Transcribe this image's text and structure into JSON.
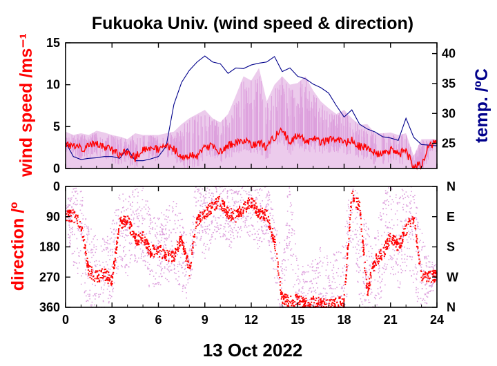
{
  "colors": {
    "speed_mean": "#ff0000",
    "speed_range": "#dda0dd",
    "temperature": "#00008b",
    "direction_mean": "#ff0000",
    "direction_raw": "#dda0dd",
    "axes": "#000000"
  },
  "chart_data": [
    {
      "panel": "top",
      "type": "line",
      "title": "Fukuoka Univ. (wind speed & direction)",
      "xlabel": "",
      "ylabel": "wind speed /ms⁻¹",
      "ylabel_right": "temp. /ºC",
      "xlim": [
        0,
        24
      ],
      "ylim": [
        0,
        15
      ],
      "ylim_right": [
        20.8,
        41.8
      ],
      "x_ticks": [
        0,
        3,
        6,
        9,
        12,
        15,
        18,
        21,
        24
      ],
      "y_ticks": [
        0,
        5,
        10,
        15
      ],
      "y_ticks_right": [
        25,
        30,
        35,
        40
      ],
      "grid": false,
      "series": [
        {
          "name": "",
          "kind": "speed-range",
          "x": [
            0,
            0.5,
            1,
            1.5,
            2,
            2.5,
            3,
            3.5,
            4,
            4.5,
            5,
            5.5,
            6,
            6.5,
            7,
            7.5,
            8,
            8.5,
            9,
            9.5,
            10,
            10.5,
            11,
            11.5,
            12,
            12.5,
            13,
            13.5,
            14,
            14.5,
            15,
            15.5,
            16,
            16.5,
            17,
            17.5,
            18,
            18.5,
            19,
            19.5,
            20,
            20.5,
            21,
            21.5,
            22,
            22.5,
            23,
            23.5,
            24
          ],
          "lower": [
            0,
            0,
            0,
            0,
            0,
            0,
            0,
            0,
            0,
            0,
            0,
            0,
            0,
            0,
            0,
            0,
            0,
            0,
            0,
            0,
            0,
            0,
            0,
            0,
            0,
            0,
            0,
            0,
            0,
            0,
            0,
            0,
            0,
            0,
            0,
            0,
            0,
            0,
            0,
            0,
            0,
            0,
            0,
            0,
            0,
            0,
            0,
            0,
            0
          ],
          "upper": [
            4.4,
            4,
            4.2,
            4,
            4.5,
            4.3,
            4,
            3.8,
            3.5,
            4.2,
            4,
            4,
            4,
            4.2,
            4.4,
            5.3,
            6,
            6.5,
            7,
            6,
            5.5,
            6.5,
            8.7,
            11,
            10.5,
            12,
            8,
            10,
            11,
            10,
            10.2,
            11,
            9.3,
            8,
            7.2,
            6.5,
            7,
            6,
            5.2,
            5.3,
            4.2,
            4.2,
            4.3,
            4,
            4.2,
            1.5,
            3.5,
            3.5,
            3.5
          ]
        },
        {
          "name": "",
          "kind": "speed-mean",
          "x": [
            0,
            0.5,
            1,
            1.5,
            2,
            2.5,
            3,
            3.5,
            4,
            4.5,
            5,
            5.5,
            6,
            6.5,
            7,
            7.5,
            8,
            8.5,
            9,
            9.5,
            10,
            10.5,
            11,
            11.5,
            12,
            12.5,
            13,
            13.5,
            14,
            14.5,
            15,
            15.5,
            16,
            16.5,
            17,
            17.5,
            18,
            18.5,
            19,
            19.5,
            20,
            20.5,
            21,
            21.5,
            22,
            22.5,
            23,
            23.5,
            24
          ],
          "values": [
            3,
            2.6,
            2.4,
            2.6,
            3,
            2.6,
            2.2,
            1.6,
            2,
            1.2,
            2.4,
            2.5,
            2.2,
            2.6,
            2.4,
            1.4,
            1.5,
            1.5,
            2.4,
            2.8,
            2,
            2.7,
            3,
            3.5,
            2.9,
            3,
            2.5,
            3.8,
            4.7,
            3,
            4,
            3.2,
            3.5,
            3.2,
            3.3,
            3.5,
            3,
            3.3,
            2.6,
            2.6,
            1.8,
            1.8,
            2.2,
            1.8,
            2,
            0.3,
            0.4,
            2.8,
            3.1
          ]
        },
        {
          "name": "",
          "kind": "temperature",
          "axis": "right",
          "x": [
            0,
            0.5,
            1,
            1.5,
            2,
            2.5,
            3,
            3.5,
            4,
            4.5,
            5,
            5.5,
            6,
            6.5,
            7,
            7.5,
            8,
            8.5,
            9,
            9.5,
            10,
            10.5,
            11,
            11.5,
            12,
            12.5,
            13,
            13.5,
            14,
            14.5,
            15,
            15.5,
            16,
            16.5,
            17,
            17.5,
            18,
            18.5,
            19,
            19.5,
            20,
            20.5,
            21,
            21.5,
            22,
            22.5,
            23,
            23.5,
            24
          ],
          "values": [
            25.2,
            22.8,
            22.3,
            22.5,
            22.6,
            22.8,
            22.8,
            22.5,
            24.1,
            22.1,
            22.1,
            22.4,
            22.8,
            24.5,
            31.5,
            35.2,
            37.2,
            38.6,
            39.6,
            38.6,
            38.3,
            36.7,
            37.6,
            37.5,
            38.1,
            38.4,
            38.6,
            39.5,
            37,
            37.6,
            36.2,
            35.8,
            34.9,
            34.3,
            33.4,
            31.3,
            29.4,
            30.6,
            28.2,
            27.4,
            26.9,
            26.1,
            25.9,
            25.5,
            29.2,
            26,
            24.8,
            24.7,
            24.6
          ]
        }
      ]
    },
    {
      "panel": "bottom",
      "type": "scatter",
      "title": "",
      "xlabel": "13 Oct 2022",
      "ylabel": "direction /º",
      "xlim": [
        0,
        24
      ],
      "ylim": [
        360,
        0
      ],
      "x_ticks": [
        0,
        3,
        6,
        9,
        12,
        15,
        18,
        21,
        24
      ],
      "y_ticks": [
        0,
        90,
        180,
        270,
        360
      ],
      "y_ticks_right": [
        "N",
        "E",
        "S",
        "W",
        "N"
      ],
      "grid": false,
      "series": [
        {
          "name": "",
          "kind": "direction-raw",
          "x": [
            0,
            0.5,
            1,
            1.5,
            2,
            2.5,
            3,
            3.5,
            4,
            4.5,
            5,
            5.5,
            6,
            6.5,
            7,
            7.5,
            8,
            8.5,
            9,
            9.5,
            10,
            10.5,
            11,
            11.5,
            12,
            12.5,
            13,
            13.5,
            14,
            14.5,
            15,
            15.5,
            16,
            16.5,
            17,
            17.5,
            18,
            18.5,
            19,
            19.5,
            20,
            20.5,
            21,
            21.5,
            22,
            22.5,
            23,
            23.5,
            24
          ],
          "values": [
            80,
            120,
            150,
            240,
            270,
            260,
            220,
            120,
            150,
            100,
            90,
            200,
            190,
            180,
            150,
            200,
            250,
            60,
            120,
            60,
            40,
            80,
            80,
            40,
            60,
            100,
            60,
            180,
            330,
            60,
            350,
            340,
            320,
            300,
            340,
            320,
            300,
            20,
            200,
            250,
            280,
            170,
            120,
            170,
            120,
            150,
            270,
            270,
            265
          ],
          "spread": [
            30,
            120,
            140,
            130,
            120,
            120,
            110,
            110,
            120,
            130,
            130,
            120,
            110,
            110,
            120,
            120,
            100,
            100,
            100,
            100,
            110,
            110,
            100,
            100,
            90,
            90,
            80,
            90,
            120,
            120,
            120,
            100,
            100,
            120,
            130,
            130,
            140,
            130,
            140,
            130,
            130,
            140,
            140,
            140,
            140,
            140,
            140,
            60,
            30
          ]
        },
        {
          "name": "",
          "kind": "direction-mean",
          "x": [
            0,
            0.5,
            1,
            1.5,
            2,
            2.5,
            3,
            3.5,
            4,
            4.5,
            5,
            5.5,
            6,
            6.5,
            7,
            7.5,
            8,
            8.5,
            9,
            9.5,
            10,
            10.5,
            11,
            11.5,
            12,
            12.5,
            13,
            13.5,
            14,
            14.5,
            15,
            15.5,
            16,
            16.5,
            17,
            17.5,
            18,
            18.5,
            19,
            19.5,
            20,
            20.5,
            21,
            21.5,
            22,
            22.5,
            23,
            23.5,
            24
          ],
          "values": [
            88,
            88,
            110,
            250,
            270,
            260,
            285,
            110,
            100,
            160,
            150,
            195,
            190,
            205,
            210,
            150,
            250,
            100,
            80,
            60,
            45,
            80,
            90,
            65,
            45,
            80,
            85,
            160,
            335,
            340,
            340,
            350,
            345,
            350,
            355,
            350,
            345,
            25,
            60,
            315,
            220,
            200,
            150,
            180,
            130,
            90,
            270,
            270,
            265
          ]
        }
      ]
    }
  ]
}
